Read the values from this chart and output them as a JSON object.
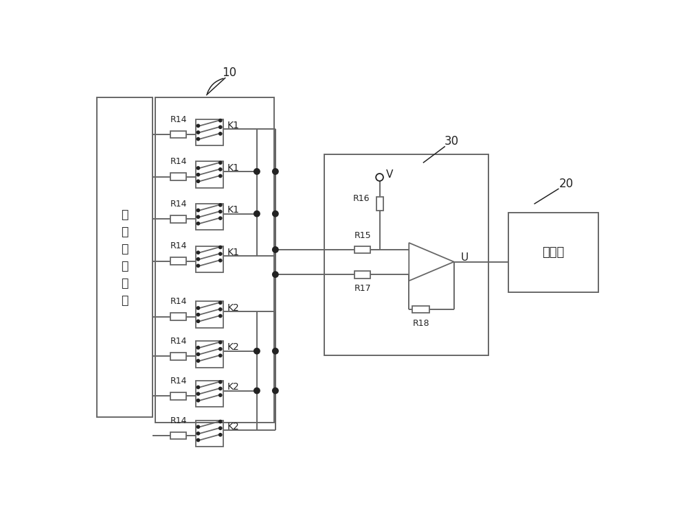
{
  "bg_color": "#ffffff",
  "line_color": "#666666",
  "dark_color": "#222222",
  "fig_width": 10.0,
  "fig_height": 7.42,
  "label_10": "10",
  "label_20": "20",
  "label_30": "30",
  "label_dc": "直\n流\n源\n接\n入\n点",
  "label_controller": "控制器",
  "k1_labels": [
    "K1",
    "K1",
    "K1",
    "K1"
  ],
  "k2_labels": [
    "K2",
    "K2",
    "K2",
    "K2"
  ],
  "r14_label": "R14",
  "r15_label": "R15",
  "r16_label": "R16",
  "r17_label": "R17",
  "r18_label": "R18",
  "v_label": "V",
  "u_label": "U"
}
